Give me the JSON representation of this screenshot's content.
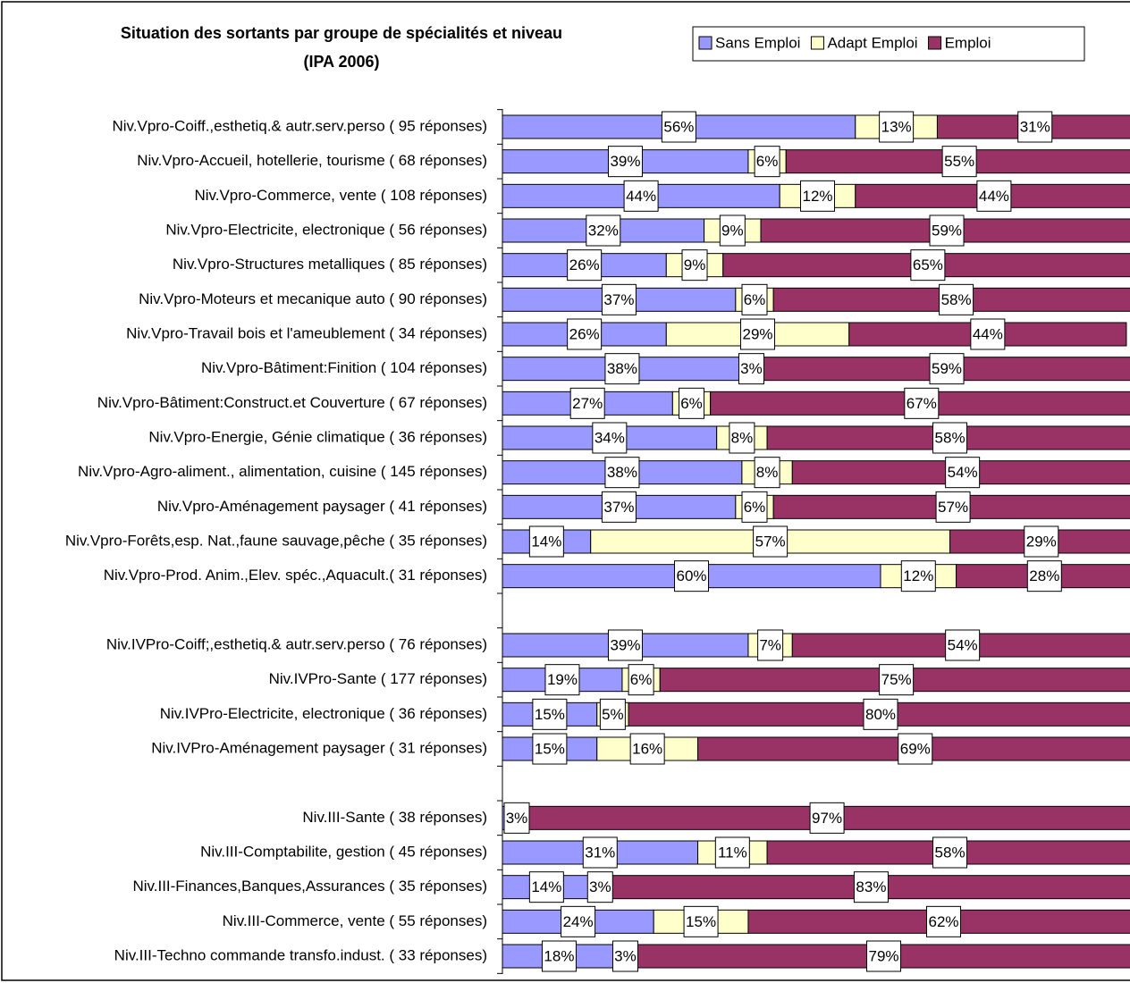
{
  "chart_data": {
    "type": "stacked-barh",
    "title": [
      "Situation des sortants par groupe de spécialités et niveau",
      "(IPA 2006)"
    ],
    "legend": "top-right",
    "categories": [
      "Niv.Vpro-Coiff.,esthetiq.& autr.serv.perso ( 95 réponses)",
      "Niv.Vpro-Accueil, hotellerie, tourisme ( 68 réponses)",
      "Niv.Vpro-Commerce, vente ( 108 réponses)",
      "Niv.Vpro-Electricite, electronique ( 56 réponses)",
      "Niv.Vpro-Structures metalliques ( 85 réponses)",
      "Niv.Vpro-Moteurs et mecanique auto ( 90 réponses)",
      "Niv.Vpro-Travail bois et l'ameublement ( 34 réponses)",
      "Niv.Vpro-Bâtiment:Finition ( 104 réponses)",
      "Niv.Vpro-Bâtiment:Construct.et Couverture ( 67 réponses)",
      "Niv.Vpro-Energie, Génie climatique ( 36 réponses)",
      "Niv.Vpro-Agro-aliment., alimentation, cuisine ( 145 réponses)",
      "Niv.Vpro-Aménagement paysager ( 41 réponses)",
      "Niv.Vpro-Forêts,esp. Nat.,faune sauvage,pêche ( 35 réponses)",
      "Niv.Vpro-Prod. Anim.,Elev. spéc.,Aquacult.( 31 réponses)",
      null,
      "Niv.IVPro-Coiff;,esthetiq.& autr.serv.perso ( 76 réponses)",
      "Niv.IVPro-Sante ( 177 réponses)",
      "Niv.IVPro-Electricite, electronique ( 36 réponses)",
      "Niv.IVPro-Aménagement paysager ( 31 réponses)",
      null,
      "Niv.III-Sante ( 38 réponses)",
      "Niv.III-Comptabilite, gestion ( 45 réponses)",
      "Niv.III-Finances,Banques,Assurances ( 35 réponses)",
      "Niv.III-Commerce, vente ( 55 réponses)",
      "Niv.III-Techno commande transfo.indust. ( 33 réponses)"
    ],
    "series": [
      {
        "name": "Sans Emploi",
        "color": "#9999ff",
        "values": [
          56,
          39,
          44,
          32,
          26,
          37,
          26,
          38,
          27,
          34,
          38,
          37,
          14,
          60,
          null,
          39,
          19,
          15,
          15,
          null,
          3,
          31,
          14,
          24,
          18
        ],
        "value_labels": [
          "56%",
          "39%",
          "44%",
          "32%",
          "26%",
          "37%",
          "26%",
          "38%",
          "27%",
          "34%",
          "38%",
          "37%",
          "14%",
          "60%",
          null,
          "39%",
          "19%",
          "15%",
          "15%",
          null,
          "3%",
          "31%",
          "14%",
          "24%",
          "18%"
        ]
      },
      {
        "name": "Adapt Emploi",
        "color": "#ffffcc",
        "values": [
          13,
          6,
          12,
          9,
          9,
          6,
          29,
          3,
          6,
          8,
          8,
          6,
          57,
          12,
          null,
          7,
          6,
          5,
          16,
          null,
          null,
          11,
          3,
          15,
          3
        ],
        "value_labels": [
          "13%",
          "6%",
          "12%",
          "9%",
          "9%",
          "6%",
          "29%",
          "3%",
          "6%",
          "8%",
          "8%",
          "6%",
          "57%",
          "12%",
          null,
          "7%",
          "6%",
          "5%",
          "16%",
          null,
          null,
          "11%",
          "3%",
          "15%",
          "3%"
        ]
      },
      {
        "name": "Emploi",
        "color": "#993366",
        "values": [
          31,
          55,
          44,
          59,
          65,
          58,
          44,
          59,
          67,
          58,
          54,
          57,
          29,
          28,
          null,
          54,
          75,
          80,
          69,
          null,
          97,
          58,
          83,
          62,
          79
        ],
        "value_labels": [
          "31%",
          "55%",
          "44%",
          "59%",
          "65%",
          "58%",
          "44%",
          "59%",
          "67%",
          "58%",
          "54%",
          "57%",
          "29%",
          "28%",
          null,
          "54%",
          "75%",
          "80%",
          "69%",
          null,
          "97%",
          "58%",
          "83%",
          "62%",
          "79%"
        ]
      }
    ]
  }
}
